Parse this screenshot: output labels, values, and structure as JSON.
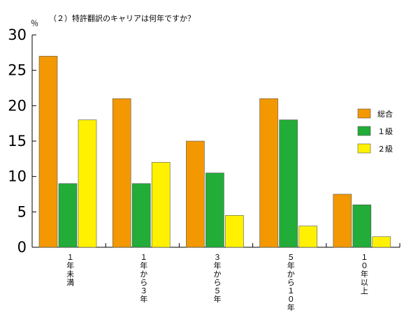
{
  "chart_data": {
    "type": "bar",
    "title": "（２）特許翻訳のキャリアは何年ですか？",
    "ylabel": "％",
    "xlabel": "",
    "ylim": [
      0,
      30
    ],
    "yticks": [
      "0",
      "5",
      "10",
      "15",
      "20",
      "25",
      "30"
    ],
    "categories": [
      "１年未満",
      "１年から３年",
      "３年から５年",
      "５年から１０年",
      "１０年以上"
    ],
    "series": [
      {
        "name": "総合",
        "color": "#f39800",
        "values": [
          27,
          21,
          15,
          21,
          7.5
        ]
      },
      {
        "name": "１級",
        "color": "#22ac38",
        "values": [
          9,
          9,
          10.5,
          18,
          6
        ]
      },
      {
        "name": "２級",
        "color": "#fff100",
        "values": [
          18,
          12,
          4.5,
          3,
          1.5
        ]
      }
    ],
    "grid": false,
    "legend": "right"
  }
}
